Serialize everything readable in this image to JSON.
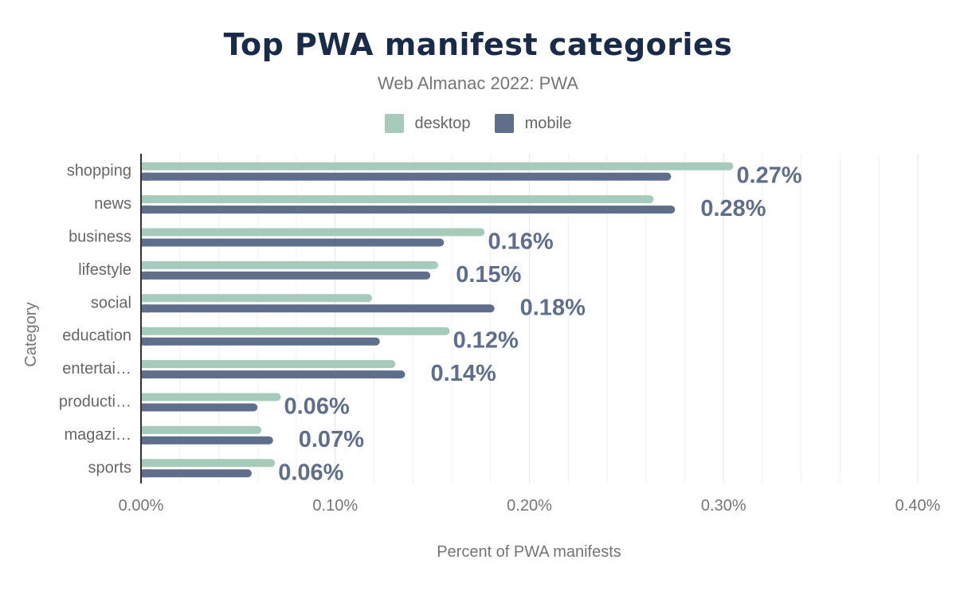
{
  "chart_data": {
    "type": "bar",
    "orientation": "horizontal",
    "title": "Top PWA manifest categories",
    "subtitle": "Web Almanac 2022: PWA",
    "xlabel": "Percent of PWA manifests",
    "ylabel": "Category",
    "xlim": [
      0,
      0.4
    ],
    "xticks": [
      "0.00%",
      "0.10%",
      "0.20%",
      "0.30%",
      "0.40%"
    ],
    "grid": true,
    "legend_placement": "top",
    "categories": [
      "shopping",
      "news",
      "business",
      "lifestyle",
      "social",
      "education",
      "entertai…",
      "producti…",
      "magazi…",
      "sports"
    ],
    "series": [
      {
        "name": "desktop",
        "color": "#a6cbba",
        "values": [
          0.305,
          0.264,
          0.177,
          0.153,
          0.119,
          0.159,
          0.131,
          0.072,
          0.062,
          0.069
        ]
      },
      {
        "name": "mobile",
        "color": "#5f6e8a",
        "values": [
          0.273,
          0.275,
          0.156,
          0.149,
          0.182,
          0.123,
          0.136,
          0.06,
          0.068,
          0.057
        ]
      }
    ],
    "data_labels": [
      "0.27%",
      "0.28%",
      "0.16%",
      "0.15%",
      "0.18%",
      "0.12%",
      "0.14%",
      "0.06%",
      "0.07%",
      "0.06%"
    ]
  }
}
